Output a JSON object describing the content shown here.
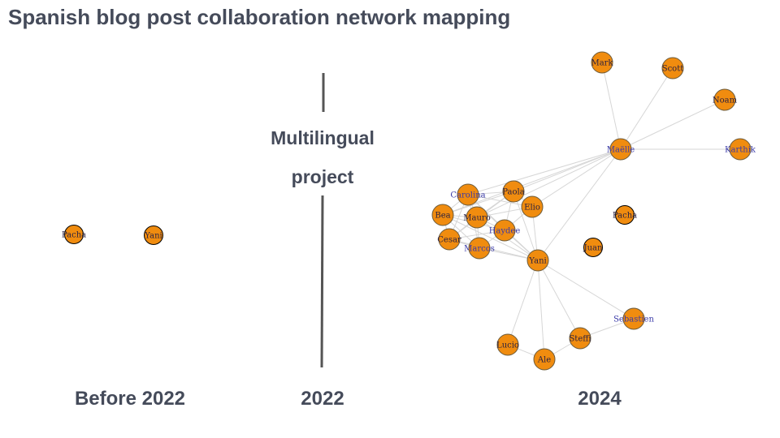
{
  "title": "Spanish blog post collaboration network mapping",
  "periods": {
    "before": "Before 2022",
    "middle": "2022",
    "after": "2024"
  },
  "divider": {
    "line1": "Multilingual",
    "line2": "project"
  },
  "colors": {
    "node_fill": "#f08c0f",
    "node_stroke": "#6b5a3a",
    "edge": "#d6d6d6",
    "label_dark": "#2b2140",
    "label_blue": "#3a3aa8",
    "text": "#454b5a"
  },
  "before_network": {
    "nodes": [
      "Pacha",
      "Yani"
    ]
  },
  "after_network": {
    "nodes": [
      "Mark",
      "Scott",
      "Noam",
      "Maëlle",
      "Karthik",
      "Carolina",
      "Paola",
      "Elio",
      "Bea",
      "Mauro",
      "Haydee",
      "Cesar",
      "Marcos",
      "Yani",
      "Pacha",
      "Juan",
      "Sebastien",
      "Lucio",
      "Steffi",
      "Ale"
    ],
    "edges": [
      [
        "Maëlle",
        "Mark"
      ],
      [
        "Maëlle",
        "Scott"
      ],
      [
        "Maëlle",
        "Noam"
      ],
      [
        "Maëlle",
        "Karthik"
      ],
      [
        "Maëlle",
        "Carolina"
      ],
      [
        "Maëlle",
        "Paola"
      ],
      [
        "Maëlle",
        "Elio"
      ],
      [
        "Maëlle",
        "Mauro"
      ],
      [
        "Maëlle",
        "Yani"
      ],
      [
        "Maëlle",
        "Bea"
      ],
      [
        "Carolina",
        "Paola"
      ],
      [
        "Carolina",
        "Bea"
      ],
      [
        "Carolina",
        "Mauro"
      ],
      [
        "Carolina",
        "Cesar"
      ],
      [
        "Carolina",
        "Haydee"
      ],
      [
        "Carolina",
        "Marcos"
      ],
      [
        "Carolina",
        "Elio"
      ],
      [
        "Carolina",
        "Yani"
      ],
      [
        "Paola",
        "Elio"
      ],
      [
        "Paola",
        "Mauro"
      ],
      [
        "Paola",
        "Haydee"
      ],
      [
        "Paola",
        "Bea"
      ],
      [
        "Paola",
        "Yani"
      ],
      [
        "Paola",
        "Cesar"
      ],
      [
        "Elio",
        "Mauro"
      ],
      [
        "Elio",
        "Haydee"
      ],
      [
        "Elio",
        "Yani"
      ],
      [
        "Bea",
        "Mauro"
      ],
      [
        "Bea",
        "Cesar"
      ],
      [
        "Bea",
        "Marcos"
      ],
      [
        "Bea",
        "Yani"
      ],
      [
        "Bea",
        "Haydee"
      ],
      [
        "Mauro",
        "Haydee"
      ],
      [
        "Mauro",
        "Cesar"
      ],
      [
        "Mauro",
        "Marcos"
      ],
      [
        "Mauro",
        "Yani"
      ],
      [
        "Haydee",
        "Marcos"
      ],
      [
        "Haydee",
        "Yani"
      ],
      [
        "Haydee",
        "Cesar"
      ],
      [
        "Cesar",
        "Marcos"
      ],
      [
        "Cesar",
        "Yani"
      ],
      [
        "Marcos",
        "Yani"
      ],
      [
        "Yani",
        "Sebastien"
      ],
      [
        "Yani",
        "Lucio"
      ],
      [
        "Yani",
        "Steffi"
      ],
      [
        "Yani",
        "Ale"
      ],
      [
        "Lucio",
        "Ale"
      ],
      [
        "Steffi",
        "Ale"
      ],
      [
        "Steffi",
        "Sebastien"
      ]
    ]
  }
}
